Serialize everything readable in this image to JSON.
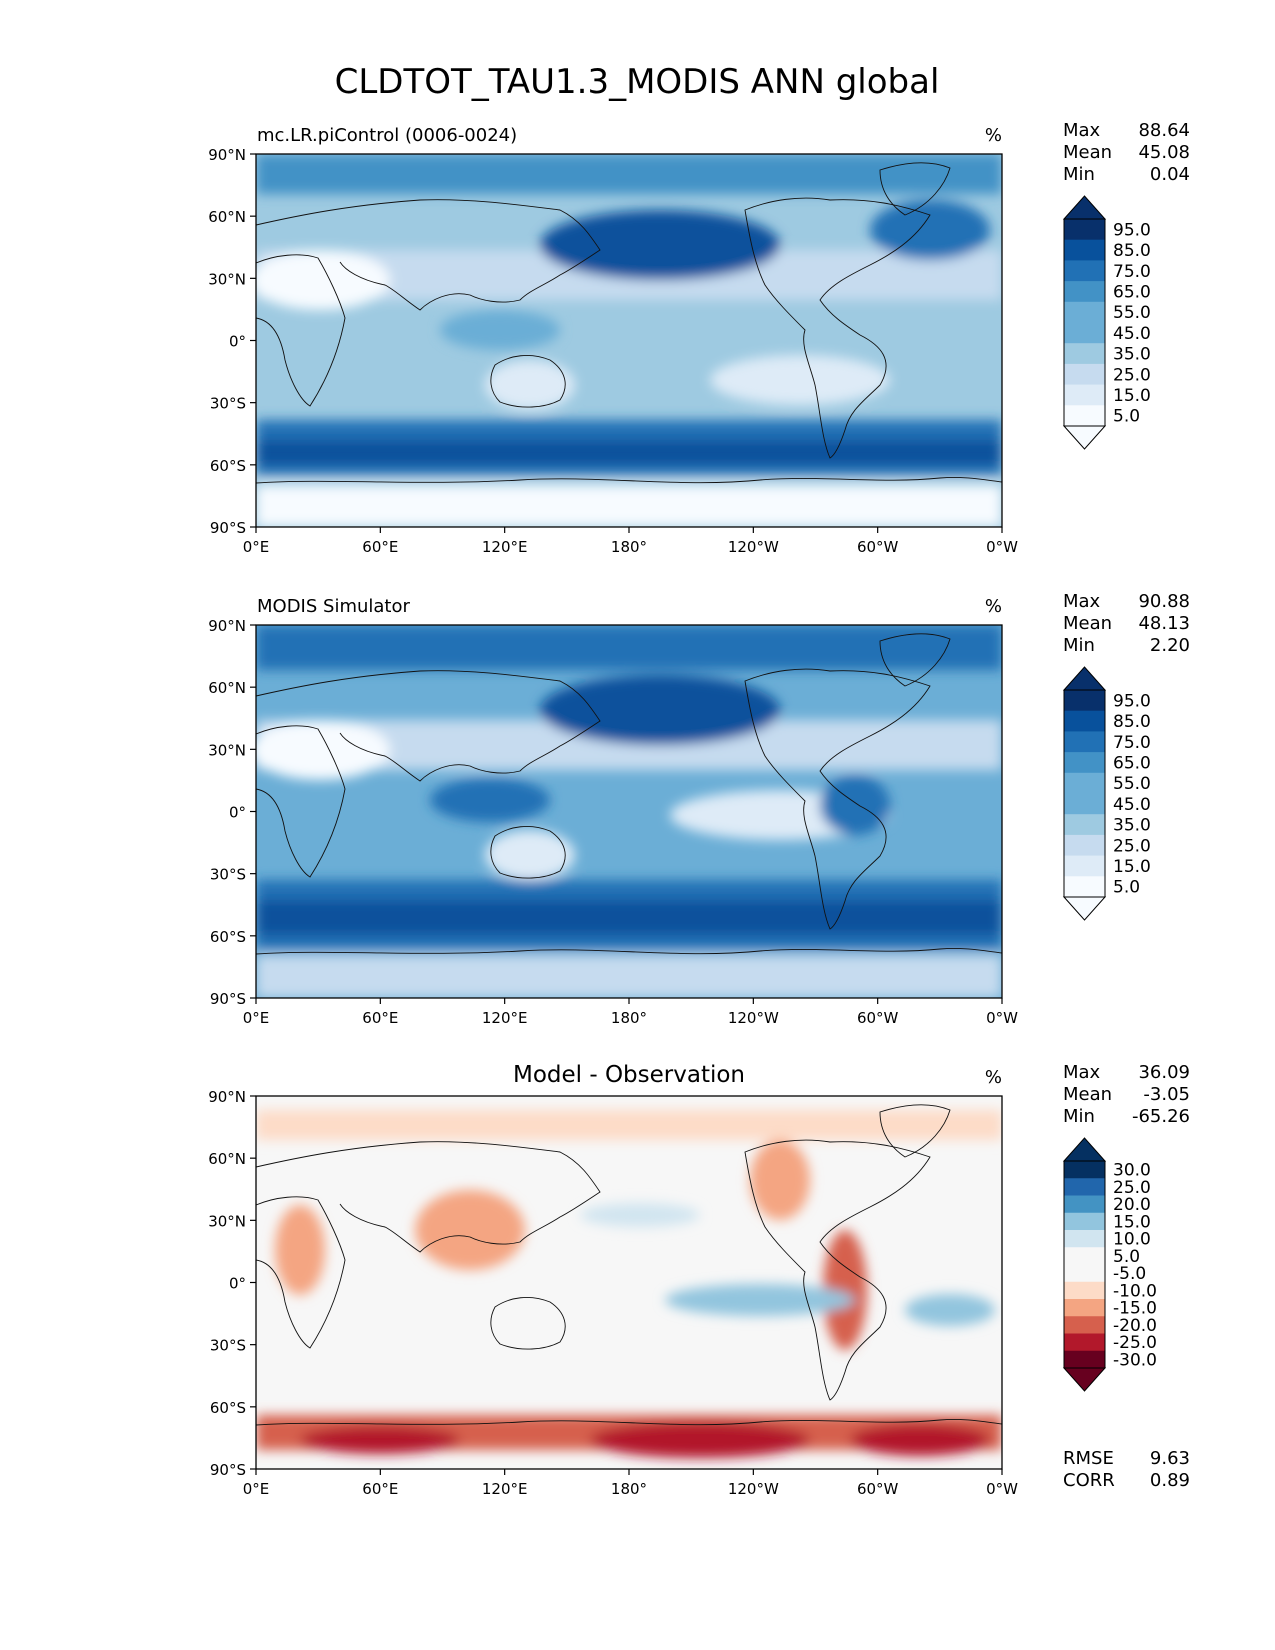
{
  "figure_title": "CLDTOT_TAU1.3_MODIS ANN global",
  "stat_labels": {
    "max": "Max",
    "mean": "Mean",
    "min": "Min",
    "rmse": "RMSE",
    "corr": "CORR"
  },
  "colors": {
    "blues": [
      "#f7fbff",
      "#deebf7",
      "#c6dbef",
      "#9ecae1",
      "#6baed6",
      "#4292c6",
      "#2171b5",
      "#08519c",
      "#08306b"
    ],
    "diverging": [
      "#67001f",
      "#b2182b",
      "#d6604d",
      "#f4a582",
      "#fddbc7",
      "#f7f7f7",
      "#d1e5f0",
      "#92c5de",
      "#4393c3",
      "#2166ac",
      "#053061"
    ]
  },
  "chart_data": [
    {
      "type": "heatmap",
      "panel": "test",
      "title": "mc.LR.piControl (0006-0024)",
      "units": "%",
      "xticks": [
        "0°E",
        "60°E",
        "120°E",
        "180°",
        "120°W",
        "60°W",
        "0°W"
      ],
      "yticks": [
        "90°N",
        "60°N",
        "30°N",
        "0°",
        "30°S",
        "60°S",
        "90°S"
      ],
      "xlim": [
        0,
        360
      ],
      "ylim": [
        -90,
        90
      ],
      "stats": {
        "max": "88.64",
        "mean": "45.08",
        "min": "0.04"
      },
      "colorbar_ticks": [
        "95.0",
        "85.0",
        "75.0",
        "65.0",
        "55.0",
        "45.0",
        "35.0",
        "25.0",
        "15.0",
        "5.0"
      ]
    },
    {
      "type": "heatmap",
      "panel": "reference",
      "title": "MODIS Simulator",
      "units": "%",
      "xticks": [
        "0°E",
        "60°E",
        "120°E",
        "180°",
        "120°W",
        "60°W",
        "0°W"
      ],
      "yticks": [
        "90°N",
        "60°N",
        "30°N",
        "0°",
        "30°S",
        "60°S",
        "90°S"
      ],
      "xlim": [
        0,
        360
      ],
      "ylim": [
        -90,
        90
      ],
      "stats": {
        "max": "90.88",
        "mean": "48.13",
        "min": "2.20"
      },
      "colorbar_ticks": [
        "95.0",
        "85.0",
        "75.0",
        "65.0",
        "55.0",
        "45.0",
        "35.0",
        "25.0",
        "15.0",
        "5.0"
      ]
    },
    {
      "type": "heatmap",
      "panel": "difference",
      "title": "Model - Observation",
      "units": "%",
      "xticks": [
        "0°E",
        "60°E",
        "120°E",
        "180°",
        "120°W",
        "60°W",
        "0°W"
      ],
      "yticks": [
        "90°N",
        "60°N",
        "30°N",
        "0°",
        "30°S",
        "60°S",
        "90°S"
      ],
      "xlim": [
        0,
        360
      ],
      "ylim": [
        -90,
        90
      ],
      "stats": {
        "max": "36.09",
        "mean": "-3.05",
        "min": "-65.26"
      },
      "metrics": {
        "rmse": "9.63",
        "corr": "0.89"
      },
      "colorbar_ticks": [
        "30.0",
        "25.0",
        "20.0",
        "15.0",
        "10.0",
        "5.0",
        "-5.0",
        "-10.0",
        "-15.0",
        "-20.0",
        "-25.0",
        "-30.0"
      ]
    }
  ]
}
